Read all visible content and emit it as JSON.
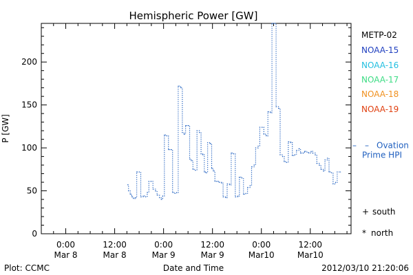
{
  "chart_data": {
    "type": "line",
    "title": "Hemispheric Power [GW]",
    "xlabel": "Date and Time",
    "ylabel": "P [GW]",
    "footer_left": "Plot: CCMC",
    "footer_right": "2012/03/10 21:20:06",
    "xlim": [
      -6,
      70
    ],
    "ylim": [
      0,
      245
    ],
    "yticks": [
      0,
      50,
      100,
      150,
      200
    ],
    "xticks": [
      {
        "x": 0,
        "line1": "0:00",
        "line2": "Mar 8"
      },
      {
        "x": 12,
        "line1": "12:00",
        "line2": "Mar 8"
      },
      {
        "x": 24,
        "line1": "0:00",
        "line2": "Mar 9"
      },
      {
        "x": 36,
        "line1": "12:00",
        "line2": "Mar 9"
      },
      {
        "x": 48,
        "line1": "0:00",
        "line2": "Mar10"
      },
      {
        "x": 60,
        "line1": "12:00",
        "line2": "Mar10"
      }
    ],
    "legend": [
      {
        "label": "METP-02",
        "color": "#000000"
      },
      {
        "label": "NOAA-15",
        "color": "#1f3fbf"
      },
      {
        "label": "NOAA-16",
        "color": "#22bfe0"
      },
      {
        "label": "NOAA-17",
        "color": "#3ddc84"
      },
      {
        "label": "NOAA-18",
        "color": "#f0901e"
      },
      {
        "label": "NOAA-19",
        "color": "#e04010"
      }
    ],
    "ovation": {
      "label_line1": "Ovation",
      "label_line2": "Prime HPI",
      "dash": "–",
      "value": 103,
      "color": "#1f5fbf"
    },
    "markers": {
      "south_label": "south",
      "south_symbol": "+",
      "north_label": "north",
      "north_symbol": "*"
    },
    "series": [
      {
        "color": "#1f5fbf",
        "points": [
          [
            15.2,
            57
          ],
          [
            15.4,
            50
          ],
          [
            15.8,
            46
          ],
          [
            16.2,
            43
          ],
          [
            16.6,
            41
          ],
          [
            17.0,
            42
          ],
          [
            17.4,
            72
          ],
          [
            18.0,
            72
          ],
          [
            18.4,
            43
          ],
          [
            19.0,
            44
          ],
          [
            19.6,
            43
          ],
          [
            20.0,
            48
          ],
          [
            20.4,
            61
          ],
          [
            21.0,
            61
          ],
          [
            21.4,
            52
          ],
          [
            22.0,
            50
          ],
          [
            22.4,
            45
          ],
          [
            23.0,
            42
          ],
          [
            23.4,
            40
          ],
          [
            23.8,
            44
          ],
          [
            24.2,
            115
          ],
          [
            24.8,
            114
          ],
          [
            25.2,
            98
          ],
          [
            25.8,
            98
          ],
          [
            26.2,
            48
          ],
          [
            26.8,
            47
          ],
          [
            27.2,
            48
          ],
          [
            27.6,
            172
          ],
          [
            28.2,
            170
          ],
          [
            28.6,
            118
          ],
          [
            29.0,
            116
          ],
          [
            29.4,
            126
          ],
          [
            30.0,
            126
          ],
          [
            30.4,
            87
          ],
          [
            30.8,
            85
          ],
          [
            31.2,
            75
          ],
          [
            31.8,
            74
          ],
          [
            32.2,
            120
          ],
          [
            32.8,
            118
          ],
          [
            33.2,
            93
          ],
          [
            33.6,
            92
          ],
          [
            34.0,
            72
          ],
          [
            34.4,
            71
          ],
          [
            34.8,
            106
          ],
          [
            35.4,
            105
          ],
          [
            35.8,
            76
          ],
          [
            36.2,
            73
          ],
          [
            36.6,
            61
          ],
          [
            37.2,
            61
          ],
          [
            37.6,
            60
          ],
          [
            38.2,
            59
          ],
          [
            38.6,
            43
          ],
          [
            39.2,
            42
          ],
          [
            39.6,
            58
          ],
          [
            40.2,
            57
          ],
          [
            40.6,
            94
          ],
          [
            41.2,
            93
          ],
          [
            41.6,
            43
          ],
          [
            42.2,
            44
          ],
          [
            42.6,
            66
          ],
          [
            43.2,
            65
          ],
          [
            43.6,
            46
          ],
          [
            44.2,
            47
          ],
          [
            44.6,
            54
          ],
          [
            45.2,
            56
          ],
          [
            45.6,
            78
          ],
          [
            46.2,
            80
          ],
          [
            46.6,
            100
          ],
          [
            47.2,
            102
          ],
          [
            47.6,
            124
          ],
          [
            48.2,
            124
          ],
          [
            48.6,
            116
          ],
          [
            49.2,
            114
          ],
          [
            49.6,
            142
          ],
          [
            50.2,
            141
          ],
          [
            50.6,
            245
          ],
          [
            51.2,
            245
          ],
          [
            51.6,
            148
          ],
          [
            52.2,
            146
          ],
          [
            52.6,
            92
          ],
          [
            53.2,
            90
          ],
          [
            53.6,
            84
          ],
          [
            54.2,
            83
          ],
          [
            54.6,
            107
          ],
          [
            55.2,
            106
          ],
          [
            55.6,
            91
          ],
          [
            56.2,
            92
          ],
          [
            56.6,
            97
          ],
          [
            57.2,
            99
          ],
          [
            57.6,
            94
          ],
          [
            58.2,
            94
          ],
          [
            58.6,
            96
          ],
          [
            59.2,
            95
          ],
          [
            59.6,
            94
          ],
          [
            60.2,
            96
          ],
          [
            60.6,
            94
          ],
          [
            61.2,
            92
          ],
          [
            61.6,
            82
          ],
          [
            62.2,
            80
          ],
          [
            62.6,
            75
          ],
          [
            63.2,
            73
          ],
          [
            63.6,
            86
          ],
          [
            64.2,
            88
          ],
          [
            64.6,
            72
          ],
          [
            65.2,
            71
          ],
          [
            65.6,
            58
          ],
          [
            66.2,
            60
          ],
          [
            66.6,
            72
          ],
          [
            67.4,
            72
          ]
        ]
      }
    ]
  }
}
